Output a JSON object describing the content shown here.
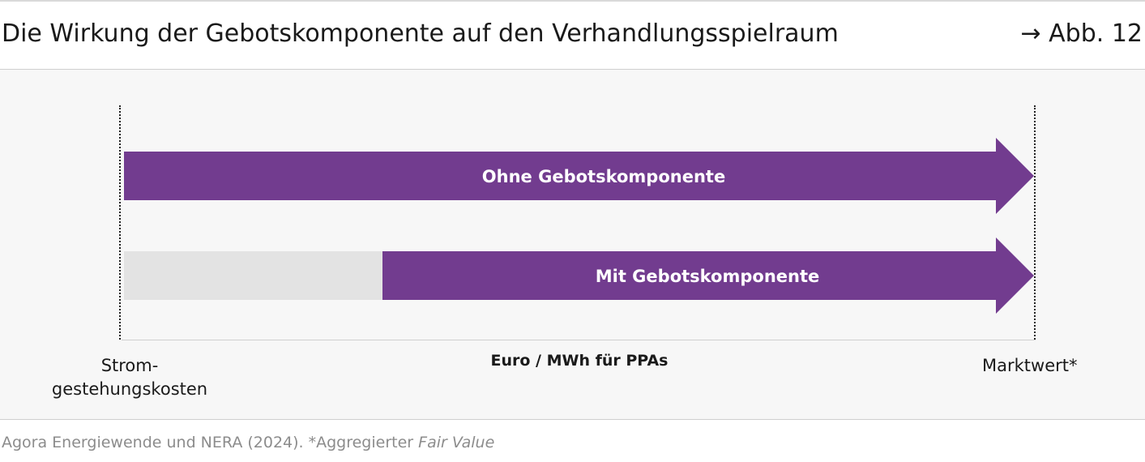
{
  "header": {
    "title": "Die Wirkung der Gebotskomponente auf den Verhandlungsspielraum",
    "figure_ref": "→ Abb. 12"
  },
  "diagram": {
    "bars": [
      {
        "label": "Ohne Gebotskomponente",
        "color": "#723c8f",
        "start_fraction": 0.0
      },
      {
        "label": "Mit Gebotskomponente",
        "color": "#723c8f",
        "start_fraction": 0.283,
        "offset_color": "#e3e3e3"
      }
    ],
    "axis": {
      "left_label": "Strom-\ngestehungskosten",
      "center_label": "Euro / MWh für PPAs",
      "right_label": "Marktwert*"
    }
  },
  "footer": {
    "source_prefix": "Agora Energiewende und NERA (2024). *Aggregierter ",
    "source_italic": "Fair Value"
  }
}
